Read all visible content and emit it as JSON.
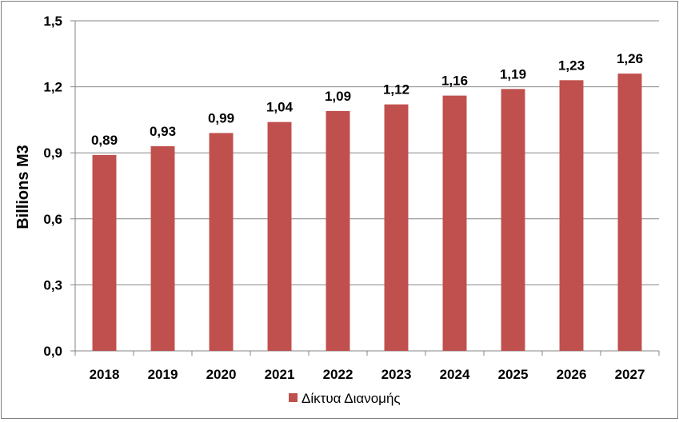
{
  "chart_data": {
    "type": "bar",
    "categories": [
      "2018",
      "2019",
      "2020",
      "2021",
      "2022",
      "2023",
      "2024",
      "2025",
      "2026",
      "2027"
    ],
    "series": [
      {
        "name": "Δίκτυα Διανομής",
        "values": [
          0.89,
          0.93,
          0.99,
          1.04,
          1.09,
          1.12,
          1.16,
          1.19,
          1.23,
          1.26
        ],
        "data_labels": [
          "0,89",
          "0,93",
          "0,99",
          "1,04",
          "1,09",
          "1,12",
          "1,16",
          "1,19",
          "1,23",
          "1,26"
        ],
        "color": "#c0504d"
      }
    ],
    "ylabel": "Billions M3",
    "xlabel": "",
    "title": "",
    "ylim": [
      0,
      1.5
    ],
    "yticks": [
      0,
      0.3,
      0.6,
      0.9,
      1.2,
      1.5
    ],
    "ytick_labels": [
      "0,0",
      "0,3",
      "0,6",
      "0,9",
      "1,2",
      "1,5"
    ],
    "grid": true,
    "gridline_color": "#868686",
    "legend_position": "bottom"
  }
}
